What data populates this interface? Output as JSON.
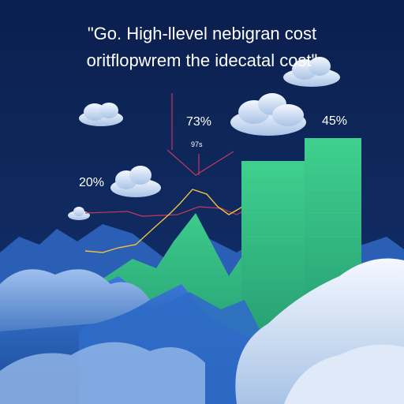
{
  "headline": {
    "line1": "\"Go. High-llevel nebigran cost",
    "line2": "oritflopwrem the idecatal cost\""
  },
  "labels": {
    "pct_73": "73%",
    "pct_97": "97s",
    "pct_20": "20%",
    "pct_45": "45%"
  },
  "colors": {
    "background": "#0c2152",
    "bar_green": "#2fb87a",
    "line_yellow": "#f2c23a",
    "line_pink": "#c0395a",
    "mountain_blue": "#2f6cc8",
    "cloud_white": "#e8f0fb"
  }
}
